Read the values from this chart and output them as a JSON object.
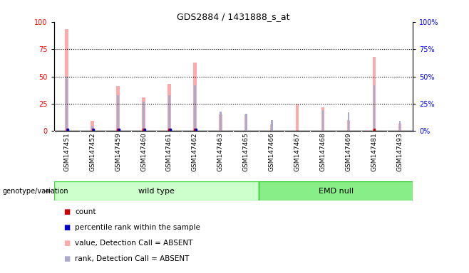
{
  "title": "GDS2884 / 1431888_s_at",
  "samples": [
    "GSM147451",
    "GSM147452",
    "GSM147459",
    "GSM147460",
    "GSM147461",
    "GSM147462",
    "GSM147463",
    "GSM147465",
    "GSM147466",
    "GSM147467",
    "GSM147468",
    "GSM147469",
    "GSM147481",
    "GSM147493"
  ],
  "absent_value_bars": [
    93,
    9,
    41,
    31,
    43,
    63,
    15,
    15,
    6,
    25,
    22,
    10,
    68,
    7
  ],
  "absent_rank_bars": [
    50,
    5,
    33,
    27,
    33,
    42,
    18,
    16,
    10,
    0,
    19,
    17,
    42,
    9
  ],
  "count_values": [
    1,
    1,
    1,
    1,
    1,
    1,
    0,
    0,
    0,
    0,
    0,
    0,
    1,
    0
  ],
  "percentile_values": [
    1,
    1,
    1,
    1,
    1,
    1,
    0,
    0,
    0,
    0,
    0,
    0,
    0,
    0
  ],
  "wild_type_count": 8,
  "emd_null_count": 6,
  "color_count": "#cc0000",
  "color_percentile": "#0000cc",
  "color_absent_value": "#ffaaaa",
  "color_absent_rank": "#aaaacc",
  "color_wildtype_light": "#ccffcc",
  "color_wildtype_dark": "#44dd44",
  "color_emdnull_light": "#88ee88",
  "color_emdnull_dark": "#33cc33",
  "bg_plot": "#ffffff",
  "bg_gray": "#cccccc",
  "ylim": [
    0,
    100
  ],
  "yticks_left": [
    0,
    25,
    50,
    75,
    100
  ],
  "yticks_right": [
    0,
    25,
    50,
    75,
    100
  ]
}
